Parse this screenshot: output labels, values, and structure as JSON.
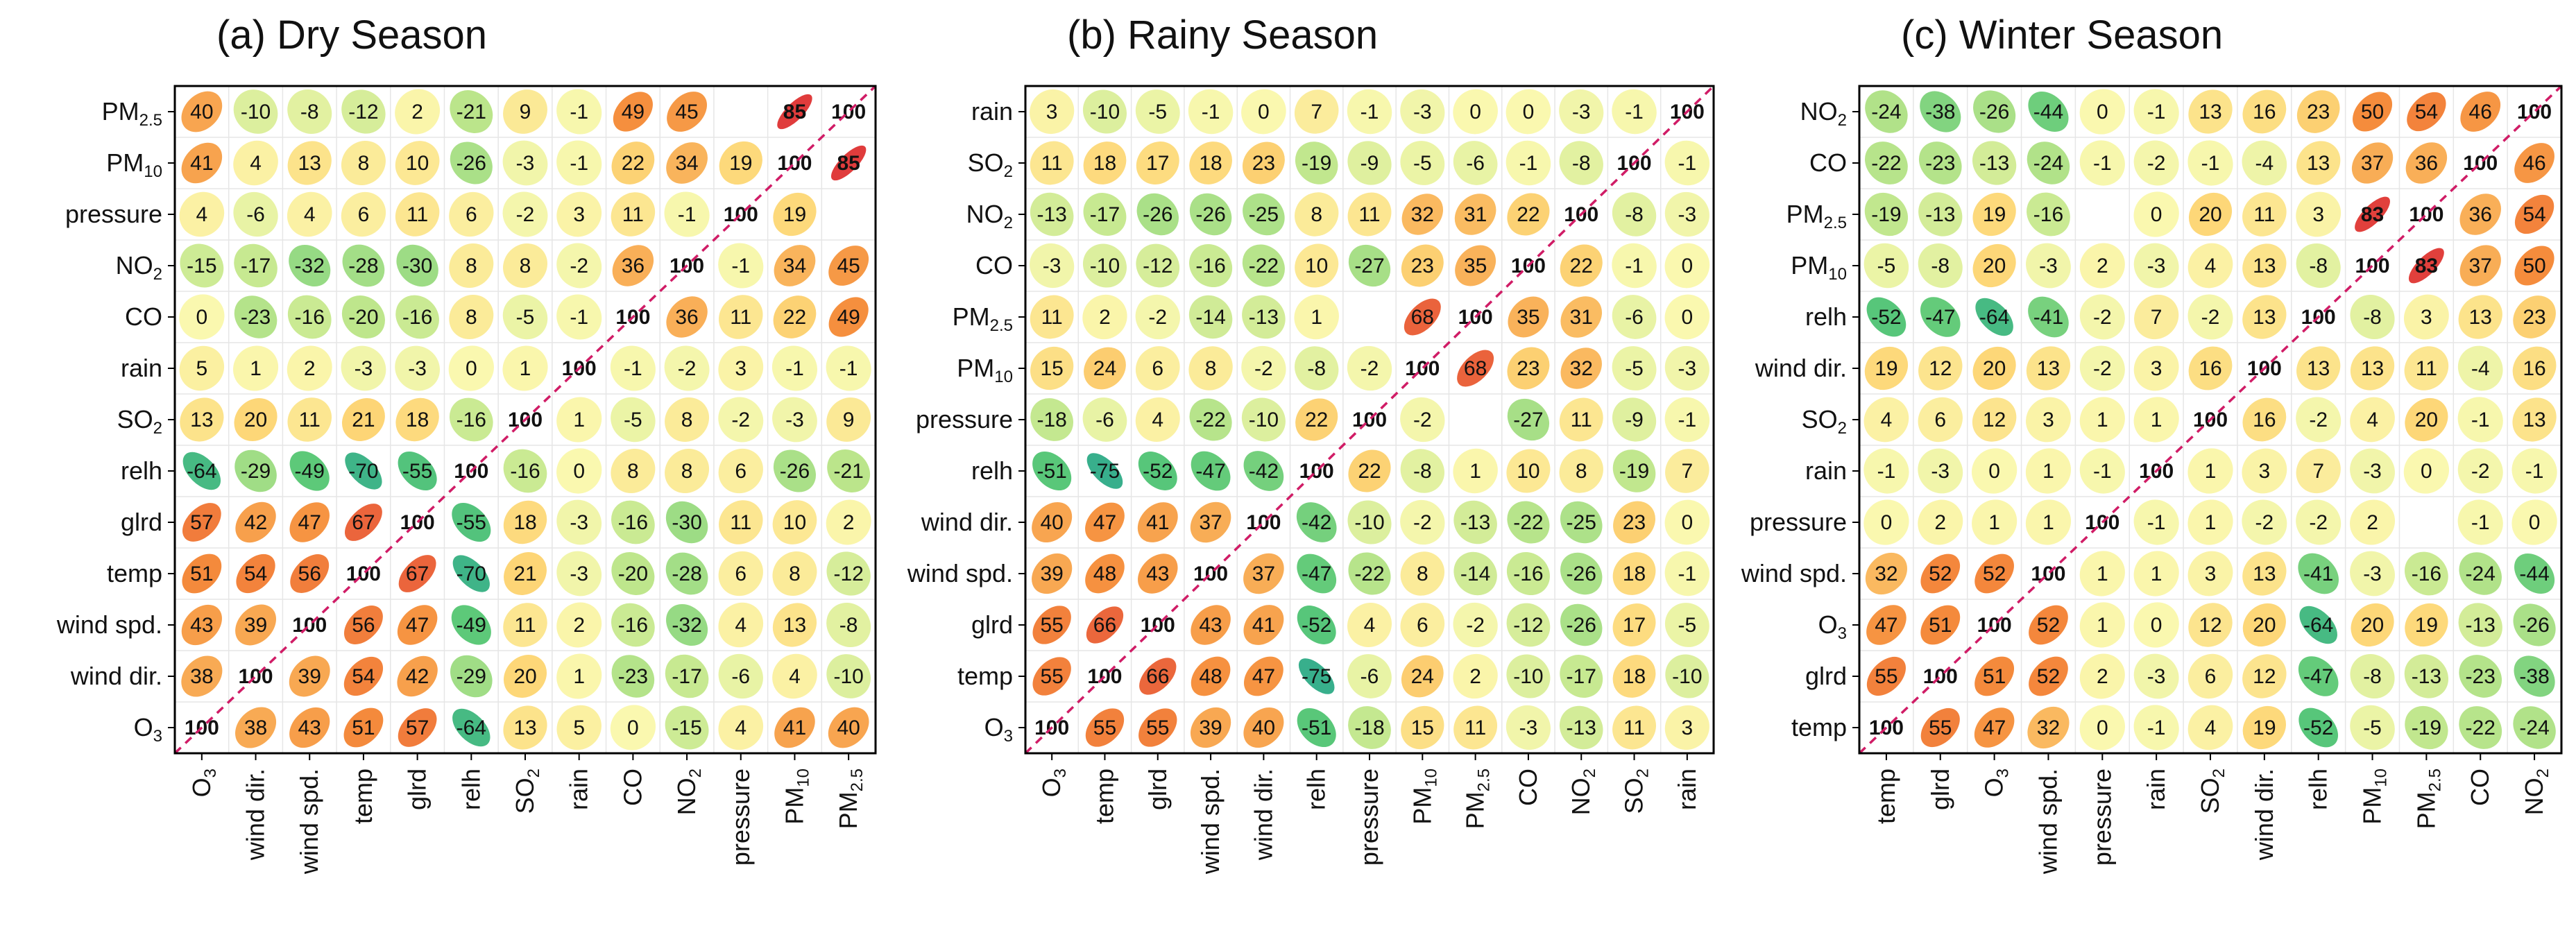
{
  "chart_data": [
    {
      "type": "heatmap",
      "title": "(a) Dry Season",
      "rows": [
        "PM2.5",
        "PM10",
        "pressure",
        "NO2",
        "CO",
        "rain",
        "SO2",
        "relh",
        "glrd",
        "temp",
        "wind spd.",
        "wind dir.",
        "O3"
      ],
      "cols": [
        "O3",
        "wind dir.",
        "wind spd.",
        "temp",
        "glrd",
        "relh",
        "SO2",
        "rain",
        "CO",
        "NO2",
        "pressure",
        "PM10",
        "PM2.5"
      ],
      "values": [
        [
          40,
          -10,
          -8,
          -12,
          2,
          -21,
          9,
          -1,
          49,
          45,
          null,
          85,
          100
        ],
        [
          41,
          4,
          13,
          8,
          10,
          -26,
          -3,
          -1,
          22,
          34,
          19,
          100,
          85
        ],
        [
          4,
          -6,
          4,
          6,
          11,
          6,
          -2,
          3,
          11,
          -1,
          100,
          19,
          null
        ],
        [
          -15,
          -17,
          -32,
          -28,
          -30,
          8,
          8,
          -2,
          36,
          100,
          -1,
          34,
          45
        ],
        [
          0,
          -23,
          -16,
          -20,
          -16,
          8,
          -5,
          -1,
          100,
          36,
          11,
          22,
          49
        ],
        [
          5,
          1,
          2,
          -3,
          -3,
          0,
          1,
          100,
          -1,
          -2,
          3,
          -1,
          -1
        ],
        [
          13,
          20,
          11,
          21,
          18,
          -16,
          100,
          1,
          -5,
          8,
          -2,
          -3,
          9
        ],
        [
          -64,
          -29,
          -49,
          -70,
          -55,
          100,
          -16,
          0,
          8,
          8,
          6,
          -26,
          -21
        ],
        [
          57,
          42,
          47,
          67,
          100,
          -55,
          18,
          -3,
          -16,
          -30,
          11,
          10,
          2
        ],
        [
          51,
          54,
          56,
          100,
          67,
          -70,
          21,
          -3,
          -20,
          -28,
          6,
          8,
          -12
        ],
        [
          43,
          39,
          100,
          56,
          47,
          -49,
          11,
          2,
          -16,
          -32,
          4,
          13,
          -8
        ],
        [
          38,
          100,
          39,
          54,
          42,
          -29,
          20,
          1,
          -23,
          -17,
          -6,
          4,
          -10
        ],
        [
          100,
          38,
          43,
          51,
          57,
          -64,
          13,
          5,
          0,
          -15,
          4,
          41,
          40
        ]
      ],
      "value_range": [
        -100,
        100
      ]
    },
    {
      "type": "heatmap",
      "title": "(b) Rainy Season",
      "rows": [
        "rain",
        "SO2",
        "NO2",
        "CO",
        "PM2.5",
        "PM10",
        "pressure",
        "relh",
        "wind dir.",
        "wind spd.",
        "glrd",
        "temp",
        "O3"
      ],
      "cols": [
        "O3",
        "temp",
        "glrd",
        "wind spd.",
        "wind dir.",
        "relh",
        "pressure",
        "PM10",
        "PM2.5",
        "CO",
        "NO2",
        "SO2",
        "rain"
      ],
      "values": [
        [
          3,
          -10,
          -5,
          -1,
          0,
          7,
          -1,
          -3,
          0,
          0,
          -3,
          -1,
          100
        ],
        [
          11,
          18,
          17,
          18,
          23,
          -19,
          -9,
          -5,
          -6,
          -1,
          -8,
          100,
          -1
        ],
        [
          -13,
          -17,
          -26,
          -26,
          -25,
          8,
          11,
          32,
          31,
          22,
          100,
          -8,
          -3
        ],
        [
          -3,
          -10,
          -12,
          -16,
          -22,
          10,
          -27,
          23,
          35,
          100,
          22,
          -1,
          0
        ],
        [
          11,
          2,
          -2,
          -14,
          -13,
          1,
          null,
          68,
          100,
          35,
          31,
          -6,
          0
        ],
        [
          15,
          24,
          6,
          8,
          -2,
          -8,
          -2,
          100,
          68,
          23,
          32,
          -5,
          -3
        ],
        [
          -18,
          -6,
          4,
          -22,
          -10,
          22,
          100,
          -2,
          null,
          -27,
          11,
          -9,
          -1
        ],
        [
          -51,
          -75,
          -52,
          -47,
          -42,
          100,
          22,
          -8,
          1,
          10,
          8,
          -19,
          7
        ],
        [
          40,
          47,
          41,
          37,
          100,
          -42,
          -10,
          -2,
          -13,
          -22,
          -25,
          23,
          0
        ],
        [
          39,
          48,
          43,
          100,
          37,
          -47,
          -22,
          8,
          -14,
          -16,
          -26,
          18,
          -1
        ],
        [
          55,
          66,
          100,
          43,
          41,
          -52,
          4,
          6,
          -2,
          -12,
          -26,
          17,
          -5
        ],
        [
          55,
          100,
          66,
          48,
          47,
          -75,
          -6,
          24,
          2,
          -10,
          -17,
          18,
          -10
        ],
        [
          100,
          55,
          55,
          39,
          40,
          -51,
          -18,
          15,
          11,
          -3,
          -13,
          11,
          3
        ]
      ],
      "value_range": [
        -100,
        100
      ]
    },
    {
      "type": "heatmap",
      "title": "(c) Winter Season",
      "rows": [
        "NO2",
        "CO",
        "PM2.5",
        "PM10",
        "relh",
        "wind dir.",
        "SO2",
        "rain",
        "pressure",
        "wind spd.",
        "O3",
        "glrd",
        "temp"
      ],
      "cols": [
        "temp",
        "glrd",
        "O3",
        "wind spd.",
        "pressure",
        "rain",
        "SO2",
        "wind dir.",
        "relh",
        "PM10",
        "PM2.5",
        "CO",
        "NO2"
      ],
      "values": [
        [
          -24,
          -38,
          -26,
          -44,
          0,
          -1,
          13,
          16,
          23,
          50,
          54,
          46,
          100
        ],
        [
          -22,
          -23,
          -13,
          -24,
          -1,
          -2,
          -1,
          -4,
          13,
          37,
          36,
          100,
          46
        ],
        [
          -19,
          -13,
          19,
          -16,
          null,
          0,
          20,
          11,
          3,
          83,
          100,
          36,
          54
        ],
        [
          -5,
          -8,
          20,
          -3,
          2,
          -3,
          4,
          13,
          -8,
          100,
          83,
          37,
          50
        ],
        [
          -52,
          -47,
          -64,
          -41,
          -2,
          7,
          -2,
          13,
          100,
          -8,
          3,
          13,
          23
        ],
        [
          19,
          12,
          20,
          13,
          -2,
          3,
          16,
          100,
          13,
          13,
          11,
          -4,
          16
        ],
        [
          4,
          6,
          12,
          3,
          1,
          1,
          100,
          16,
          -2,
          4,
          20,
          -1,
          13
        ],
        [
          -1,
          -3,
          0,
          1,
          -1,
          100,
          1,
          3,
          7,
          -3,
          0,
          -2,
          -1
        ],
        [
          0,
          2,
          1,
          1,
          100,
          -1,
          1,
          -2,
          -2,
          2,
          null,
          -1,
          0
        ],
        [
          32,
          52,
          52,
          100,
          1,
          1,
          3,
          13,
          -41,
          -3,
          -16,
          -24,
          -44
        ],
        [
          47,
          51,
          100,
          52,
          1,
          0,
          12,
          20,
          -64,
          20,
          19,
          -13,
          -26
        ],
        [
          55,
          100,
          51,
          52,
          2,
          -3,
          6,
          12,
          -47,
          -8,
          -13,
          -23,
          -38
        ],
        [
          100,
          55,
          47,
          32,
          0,
          -1,
          4,
          19,
          -52,
          -5,
          -19,
          -22,
          -24
        ]
      ],
      "value_range": [
        -100,
        100
      ]
    }
  ]
}
